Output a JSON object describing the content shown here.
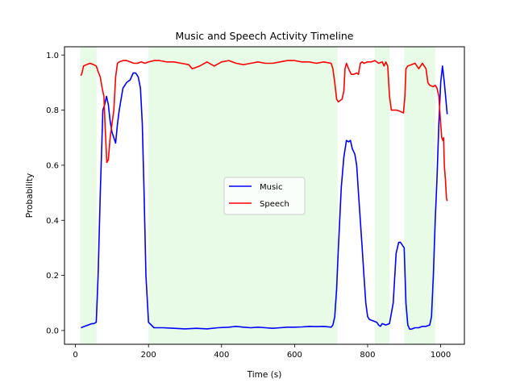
{
  "chart_data": {
    "type": "line",
    "title": "Music and Speech Activity Timeline",
    "xlabel": "Time (s)",
    "ylabel": "Probability",
    "xlim": [
      -30,
      1065
    ],
    "ylim": [
      -0.05,
      1.03
    ],
    "xticks": [
      0,
      200,
      400,
      600,
      800,
      1000
    ],
    "yticks": [
      0.0,
      0.2,
      0.4,
      0.6,
      0.8,
      1.0
    ],
    "xtick_labels": [
      "0",
      "200",
      "400",
      "600",
      "800",
      "1000"
    ],
    "ytick_labels": [
      "0.0",
      "0.2",
      "0.4",
      "0.6",
      "0.8",
      "1.0"
    ],
    "grid": false,
    "legend_position": "center",
    "shaded_regions": {
      "color": "#90ee90",
      "ranges": [
        [
          13,
          58
        ],
        [
          200,
          718
        ],
        [
          820,
          860
        ],
        [
          900,
          985
        ]
      ]
    },
    "series": [
      {
        "name": "Music",
        "color": "#0000ff",
        "x": [
          15,
          25,
          35,
          45,
          50,
          57,
          62,
          68,
          75,
          80,
          85,
          90,
          95,
          100,
          105,
          110,
          115,
          120,
          125,
          130,
          140,
          150,
          158,
          165,
          172,
          178,
          183,
          188,
          193,
          200,
          215,
          240,
          270,
          300,
          330,
          360,
          390,
          420,
          440,
          460,
          480,
          500,
          520,
          540,
          560,
          580,
          600,
          620,
          640,
          660,
          680,
          700,
          705,
          710,
          715,
          720,
          728,
          735,
          742,
          748,
          753,
          758,
          765,
          770,
          775,
          780,
          785,
          790,
          795,
          800,
          805,
          815,
          825,
          830,
          835,
          840,
          850,
          860,
          870,
          878,
          885,
          890,
          900,
          905,
          910,
          915,
          920,
          930,
          940,
          950,
          960,
          970,
          975,
          980,
          985,
          990,
          995,
          1000,
          1005,
          1010,
          1018
        ],
        "y": [
          0.01,
          0.015,
          0.02,
          0.025,
          0.025,
          0.03,
          0.2,
          0.5,
          0.8,
          0.82,
          0.85,
          0.82,
          0.76,
          0.72,
          0.7,
          0.68,
          0.75,
          0.8,
          0.84,
          0.88,
          0.9,
          0.91,
          0.935,
          0.935,
          0.92,
          0.88,
          0.75,
          0.5,
          0.2,
          0.03,
          0.01,
          0.01,
          0.008,
          0.006,
          0.008,
          0.006,
          0.01,
          0.012,
          0.015,
          0.012,
          0.01,
          0.012,
          0.01,
          0.008,
          0.01,
          0.012,
          0.012,
          0.013,
          0.015,
          0.014,
          0.015,
          0.012,
          0.02,
          0.05,
          0.15,
          0.3,
          0.52,
          0.63,
          0.69,
          0.685,
          0.69,
          0.66,
          0.64,
          0.6,
          0.5,
          0.4,
          0.3,
          0.2,
          0.1,
          0.05,
          0.04,
          0.035,
          0.03,
          0.02,
          0.015,
          0.025,
          0.02,
          0.025,
          0.1,
          0.28,
          0.32,
          0.32,
          0.3,
          0.1,
          0.02,
          0.005,
          0.005,
          0.01,
          0.01,
          0.015,
          0.015,
          0.02,
          0.05,
          0.2,
          0.4,
          0.55,
          0.75,
          0.9,
          0.96,
          0.9,
          0.785
        ]
      },
      {
        "name": "Speech",
        "color": "#ff0000",
        "x": [
          15,
          18,
          22,
          30,
          40,
          50,
          57,
          62,
          68,
          73,
          78,
          82,
          86,
          90,
          95,
          100,
          105,
          110,
          115,
          120,
          130,
          140,
          150,
          160,
          170,
          180,
          190,
          200,
          215,
          230,
          250,
          270,
          290,
          310,
          320,
          330,
          340,
          360,
          380,
          400,
          420,
          440,
          460,
          480,
          500,
          520,
          540,
          560,
          580,
          600,
          620,
          640,
          660,
          680,
          700,
          705,
          710,
          715,
          720,
          725,
          730,
          735,
          738,
          742,
          748,
          755,
          762,
          770,
          775,
          780,
          785,
          790,
          800,
          810,
          820,
          830,
          840,
          845,
          850,
          855,
          860,
          865,
          870,
          880,
          890,
          898,
          902,
          905,
          910,
          920,
          930,
          940,
          950,
          960,
          965,
          970,
          980,
          985,
          990,
          995,
          1000,
          1003,
          1006,
          1008,
          1010,
          1013,
          1016,
          1018
        ],
        "y": [
          0.925,
          0.935,
          0.96,
          0.965,
          0.97,
          0.965,
          0.96,
          0.94,
          0.92,
          0.88,
          0.85,
          0.72,
          0.61,
          0.62,
          0.7,
          0.75,
          0.8,
          0.92,
          0.97,
          0.975,
          0.98,
          0.98,
          0.975,
          0.97,
          0.97,
          0.975,
          0.97,
          0.975,
          0.98,
          0.98,
          0.975,
          0.975,
          0.97,
          0.965,
          0.95,
          0.955,
          0.96,
          0.975,
          0.96,
          0.975,
          0.98,
          0.97,
          0.965,
          0.97,
          0.975,
          0.97,
          0.97,
          0.975,
          0.98,
          0.98,
          0.975,
          0.975,
          0.97,
          0.975,
          0.97,
          0.95,
          0.9,
          0.84,
          0.83,
          0.835,
          0.84,
          0.87,
          0.95,
          0.97,
          0.95,
          0.93,
          0.93,
          0.935,
          0.93,
          0.97,
          0.975,
          0.97,
          0.975,
          0.975,
          0.98,
          0.97,
          0.975,
          0.96,
          0.975,
          0.96,
          0.85,
          0.8,
          0.8,
          0.8,
          0.795,
          0.79,
          0.85,
          0.95,
          0.96,
          0.965,
          0.97,
          0.95,
          0.97,
          0.95,
          0.9,
          0.89,
          0.885,
          0.89,
          0.88,
          0.85,
          0.75,
          0.7,
          0.69,
          0.7,
          0.6,
          0.55,
          0.48,
          0.47
        ]
      }
    ]
  }
}
